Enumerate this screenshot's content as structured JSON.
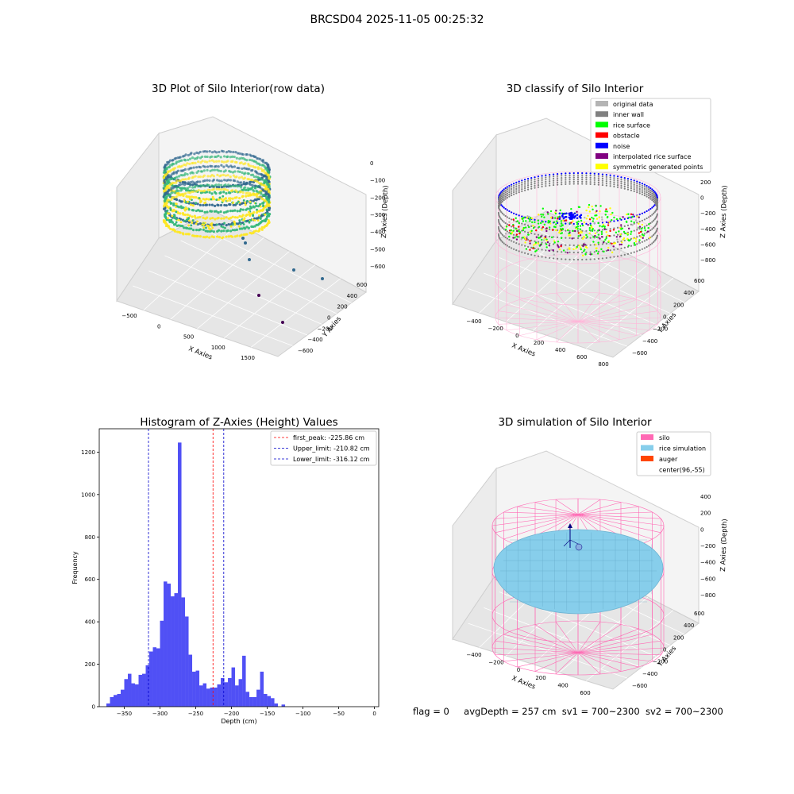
{
  "suptitle": "BRCSD04 2025-11-05 00:25:32",
  "status_line": {
    "flag": "flag = 0",
    "avg_depth": "avgDepth = 257 cm",
    "sv1": "sv1 = 700~2300",
    "sv2": "sv2 = 700~2300"
  },
  "chart_data": [
    {
      "type": "scatter",
      "title": "3D Plot of Silo Interior(row data)",
      "xlabel": "X Axies",
      "ylabel": "Y Axies",
      "zlabel": "Z Axies (Depth)",
      "x_ticks": [
        "−500",
        "0",
        "500",
        "1000",
        "1500"
      ],
      "y_ticks": [
        "600",
        "400",
        "200",
        "0",
        "−200",
        "−400",
        "−600"
      ],
      "z_ticks": [
        "0",
        "−100",
        "−200",
        "−300",
        "−400",
        "−500",
        "−600"
      ],
      "colormap": [
        "#440154",
        "#31688e",
        "#35b779",
        "#fde725"
      ]
    },
    {
      "type": "scatter",
      "title": "3D classify of Silo Interior",
      "xlabel": "X Axies",
      "ylabel": "Y Axies",
      "zlabel": "Z Axies (Depth)",
      "x_ticks": [
        "−400",
        "−200",
        "0",
        "200",
        "400",
        "600",
        "800"
      ],
      "y_ticks": [
        "600",
        "400",
        "200",
        "0",
        "−200",
        "−400",
        "−600"
      ],
      "z_ticks": [
        "200",
        "0",
        "−200",
        "−400",
        "−600",
        "−800"
      ],
      "legend": [
        {
          "label": "original data",
          "color": "#b4b4b4"
        },
        {
          "label": "inner wall",
          "color": "#808080"
        },
        {
          "label": "rice surface",
          "color": "#00ff00"
        },
        {
          "label": "obstacle",
          "color": "#ff0000"
        },
        {
          "label": "noise",
          "color": "#0000ff"
        },
        {
          "label": "interpolated rice surface",
          "color": "#800080"
        },
        {
          "label": "symmetric generated points",
          "color": "#ffff00"
        }
      ],
      "legend_loc": "upper right"
    },
    {
      "type": "bar",
      "title": "Histogram of Z-Axies (Height) Values",
      "xlabel": "Depth (cm)",
      "ylabel": "Frequency",
      "bin_start": -375,
      "bin_width": 5,
      "values": [
        15,
        45,
        55,
        60,
        80,
        130,
        155,
        110,
        105,
        150,
        155,
        195,
        260,
        280,
        275,
        405,
        590,
        580,
        520,
        535,
        1245,
        515,
        425,
        245,
        165,
        170,
        100,
        110,
        85,
        90,
        90,
        105,
        135,
        115,
        135,
        185,
        100,
        130,
        240,
        70,
        45,
        45,
        80,
        165,
        60,
        50,
        40,
        15,
        0,
        10
      ],
      "xlim": [
        -385,
        6
      ],
      "ylim": [
        0,
        1310
      ],
      "x_ticks": [
        -350,
        -300,
        -250,
        -200,
        -150,
        -100,
        -50,
        0
      ],
      "y_ticks": [
        0,
        200,
        400,
        600,
        800,
        1000,
        1200
      ],
      "bar_color": "#5050f5",
      "lines": [
        {
          "label": "first_peak: -225.86 cm",
          "x": -225.86,
          "color": "#ff0000"
        },
        {
          "label": "Upper_limit: -210.82 cm",
          "x": -210.82,
          "color": "#0000cc"
        },
        {
          "label": "Lower_limit: -316.12 cm",
          "x": -316.12,
          "color": "#0000cc"
        }
      ],
      "legend_loc": "upper right"
    },
    {
      "type": "scatter",
      "title": "3D simulation of Silo Interior",
      "xlabel": "X Axies",
      "ylabel": "Y Axies",
      "zlabel": "Z Axies (Depth)",
      "x_ticks": [
        "−400",
        "−200",
        "0",
        "200",
        "400",
        "600"
      ],
      "y_ticks": [
        "600",
        "400",
        "200",
        "0",
        "−200",
        "−400",
        "−600"
      ],
      "z_ticks": [
        "400",
        "200",
        "0",
        "−200",
        "−400",
        "−600",
        "−800"
      ],
      "legend": [
        {
          "label": "silo",
          "color": "#ff69b4"
        },
        {
          "label": "rice simulation",
          "color": "#87ceeb"
        },
        {
          "label": "auger",
          "color": "#ff4500"
        },
        {
          "label": "center(96,-55)",
          "color": ""
        }
      ],
      "legend_loc": "upper right"
    }
  ]
}
